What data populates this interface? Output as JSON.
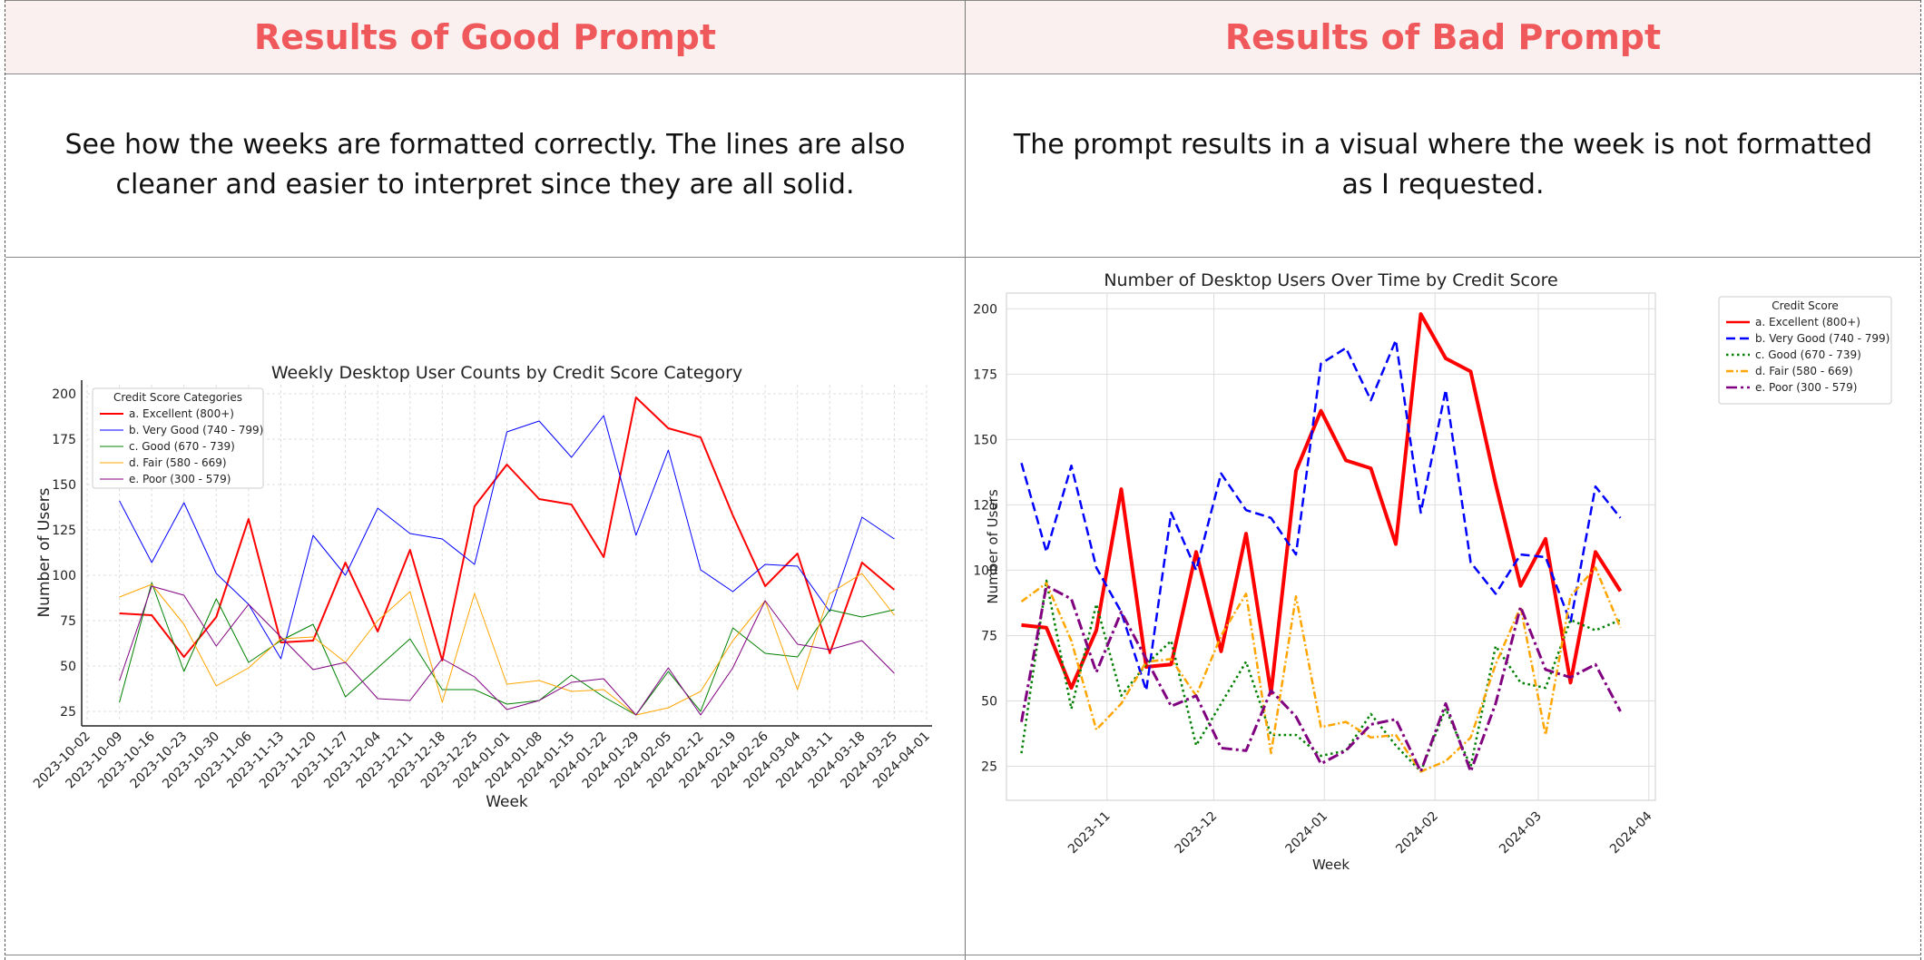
{
  "left": {
    "heading": "Results of Good Prompt",
    "description": "See how the weeks are formatted correctly. The lines are also cleaner and easier to interpret since they are all solid."
  },
  "right": {
    "heading": "Results of Bad Prompt",
    "description": "The prompt results in a visual where the week is not formatted as I requested."
  },
  "colors": {
    "excellent": "#ff0000",
    "very_good": "#0000ff",
    "good": "#008000",
    "fair": "#ffa500",
    "poor": "#800080"
  },
  "chart_data": [
    {
      "type": "line",
      "title": "Weekly Desktop User Counts by Credit Score Category",
      "xlabel": "Week",
      "ylabel": "Number of Users",
      "ylim": [
        20,
        205
      ],
      "yticks": [
        25,
        50,
        75,
        100,
        125,
        150,
        175,
        200
      ],
      "xtick_labels": [
        "2023-10-02",
        "2023-10-09",
        "2023-10-16",
        "2023-10-23",
        "2023-10-30",
        "2023-11-06",
        "2023-11-13",
        "2023-11-20",
        "2023-11-27",
        "2023-12-04",
        "2023-12-11",
        "2023-12-18",
        "2023-12-25",
        "2024-01-01",
        "2024-01-08",
        "2024-01-15",
        "2024-01-22",
        "2024-01-29",
        "2024-02-05",
        "2024-02-12",
        "2024-02-19",
        "2024-02-26",
        "2024-03-04",
        "2024-03-11",
        "2024-03-18",
        "2024-03-25",
        "2024-04-01"
      ],
      "legend_title": "Credit Score Categories",
      "legend_position": "upper-left",
      "grid": true,
      "x_start_tick": 1,
      "series": [
        {
          "name": "a. Excellent (800+)",
          "color": "#ff0000",
          "dash": "solid",
          "width": 2,
          "values": [
            79,
            78,
            55,
            77,
            131,
            63,
            64,
            107,
            69,
            114,
            53,
            138,
            161,
            142,
            139,
            110,
            198,
            181,
            176,
            133,
            94,
            112,
            57,
            107,
            92
          ]
        },
        {
          "name": "b. Very Good (740 - 799)",
          "color": "#0000ff",
          "dash": "solid",
          "width": 1,
          "values": [
            141,
            107,
            140,
            101,
            84,
            54,
            122,
            100,
            137,
            123,
            120,
            106,
            179,
            185,
            165,
            188,
            122,
            169,
            103,
            91,
            106,
            105,
            80,
            132,
            120
          ]
        },
        {
          "name": "c. Good (670 - 739)",
          "color": "#008000",
          "dash": "solid",
          "width": 1,
          "values": [
            30,
            96,
            47,
            87,
            52,
            64,
            73,
            33,
            49,
            65,
            37,
            37,
            29,
            31,
            45,
            33,
            23,
            47,
            25,
            71,
            57,
            55,
            81,
            77,
            81
          ]
        },
        {
          "name": "d. Fair (580 - 669)",
          "color": "#ffa500",
          "dash": "solid",
          "width": 1,
          "values": [
            88,
            95,
            73,
            39,
            49,
            65,
            66,
            52,
            75,
            91,
            30,
            90,
            40,
            42,
            36,
            37,
            23,
            27,
            36,
            64,
            86,
            37,
            90,
            101,
            78
          ]
        },
        {
          "name": "e. Poor (300 - 579)",
          "color": "#800080",
          "dash": "solid",
          "width": 1,
          "values": [
            42,
            94,
            89,
            61,
            84,
            66,
            48,
            52,
            32,
            31,
            54,
            44,
            26,
            31,
            41,
            43,
            23,
            49,
            23,
            49,
            86,
            62,
            59,
            64,
            46
          ]
        }
      ]
    },
    {
      "type": "line",
      "title": "Number of Desktop Users Over Time by Credit Score",
      "xlabel": "Week",
      "ylabel": "Number of Users",
      "ylim": [
        12,
        206
      ],
      "yticks": [
        25,
        50,
        75,
        100,
        125,
        150,
        175,
        200
      ],
      "xtick_labels": [
        "2023-11",
        "2023-12",
        "2024-01",
        "2024-02",
        "2024-03",
        "2024-04"
      ],
      "legend_title": "Credit Score",
      "legend_position": "outside-right",
      "grid": true,
      "series": [
        {
          "name": "a. Excellent (800+)",
          "color": "#ff0000",
          "dash": "solid",
          "width": 4,
          "values": [
            79,
            78,
            55,
            77,
            131,
            63,
            64,
            107,
            69,
            114,
            53,
            138,
            161,
            142,
            139,
            110,
            198,
            181,
            176,
            133,
            94,
            112,
            57,
            107,
            92
          ]
        },
        {
          "name": "b. Very Good (740 - 799)",
          "color": "#0000ff",
          "dash": "dashed",
          "width": 2.5,
          "values": [
            141,
            107,
            140,
            101,
            84,
            54,
            122,
            100,
            137,
            123,
            120,
            106,
            179,
            185,
            165,
            188,
            122,
            169,
            103,
            91,
            106,
            105,
            80,
            132,
            120
          ]
        },
        {
          "name": "c. Good (670 - 739)",
          "color": "#008000",
          "dash": "dotted",
          "width": 2.5,
          "values": [
            30,
            96,
            47,
            87,
            52,
            64,
            73,
            33,
            49,
            65,
            37,
            37,
            29,
            31,
            45,
            33,
            23,
            47,
            25,
            71,
            57,
            55,
            81,
            77,
            81
          ]
        },
        {
          "name": "d. Fair (580 - 669)",
          "color": "#ffa500",
          "dash": "dashdot-dense",
          "width": 2.5,
          "values": [
            88,
            95,
            73,
            39,
            49,
            65,
            66,
            52,
            75,
            91,
            30,
            90,
            40,
            42,
            36,
            37,
            23,
            27,
            36,
            64,
            86,
            37,
            90,
            101,
            78
          ]
        },
        {
          "name": "e. Poor (300 - 579)",
          "color": "#800080",
          "dash": "dashdot",
          "width": 3,
          "values": [
            42,
            94,
            89,
            61,
            84,
            66,
            48,
            52,
            32,
            31,
            54,
            44,
            26,
            31,
            41,
            43,
            23,
            49,
            23,
            49,
            86,
            62,
            59,
            64,
            46
          ]
        }
      ]
    }
  ]
}
